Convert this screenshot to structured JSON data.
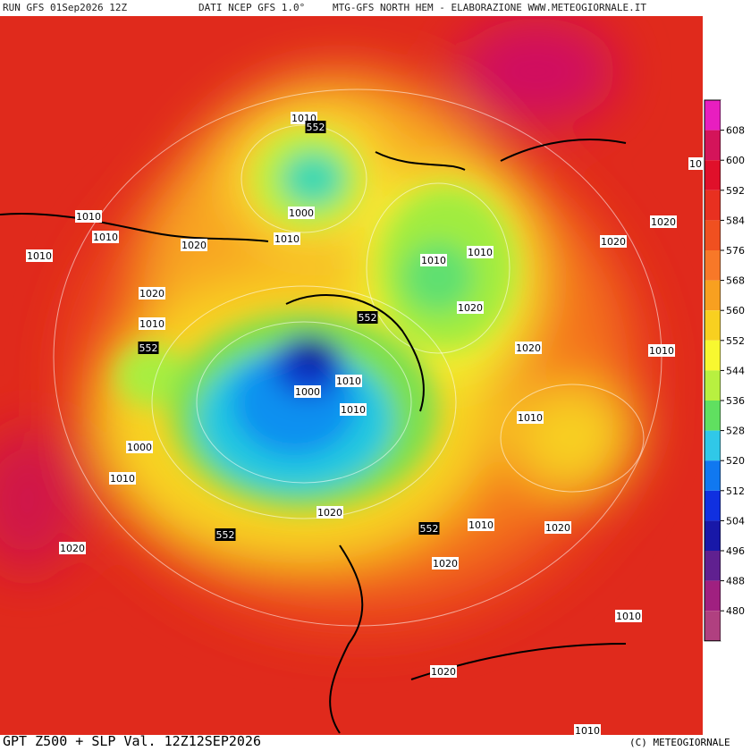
{
  "header": {
    "run": "RUN GFS 01Sep2026 12Z",
    "source": "DATI NCEP GFS 1.0°",
    "credit": "MTG-GFS NORTH HEM - ELABORAZIONE WWW.METEOGIORNALE.IT"
  },
  "footer": {
    "title": "GPT Z500 + SLP Val. 12Z12SEP2026",
    "copyright": "(C) METEOGIORNALE"
  },
  "legend": {
    "labels": [
      "608",
      "600",
      "592",
      "584",
      "576",
      "568",
      "560",
      "552",
      "544",
      "536",
      "528",
      "520",
      "512",
      "504",
      "496",
      "488",
      "480"
    ]
  },
  "contour_labels": [
    "1010",
    "552",
    "1000",
    "1010",
    "1010",
    "1010",
    "1010",
    "1020",
    "1010",
    "1010",
    "1020",
    "1020",
    "10",
    "1020",
    "1020",
    "552",
    "1010",
    "552",
    "1020",
    "1010",
    "1000",
    "1010",
    "1010",
    "1010",
    "1000",
    "1010",
    "1020",
    "1010",
    "552",
    "552",
    "1020",
    "1020",
    "1020",
    "1010",
    "1020",
    "1010"
  ]
}
